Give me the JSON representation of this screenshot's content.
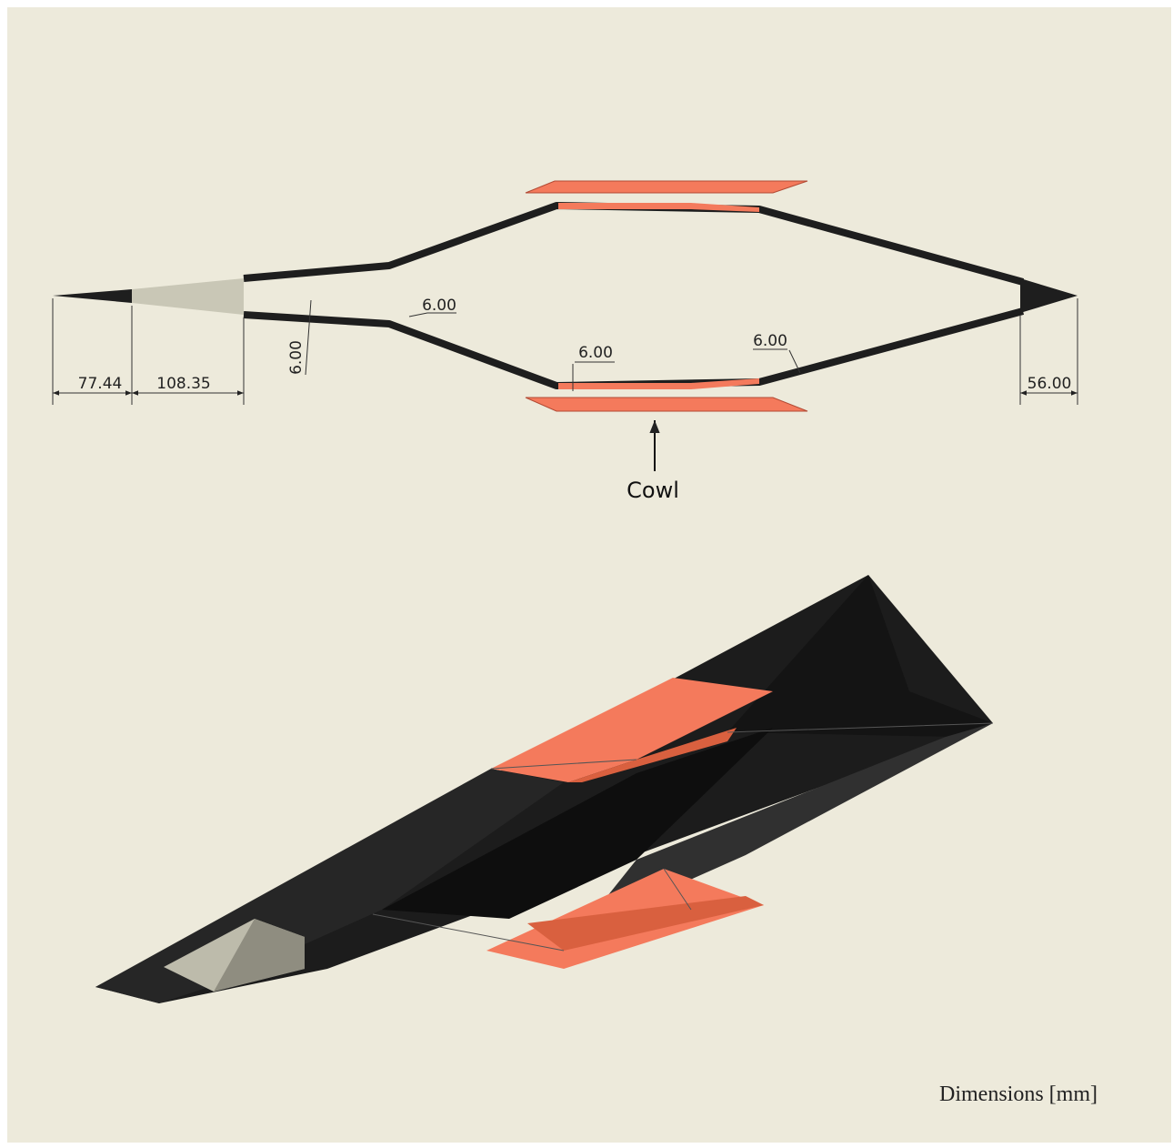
{
  "dimensions": [
    "77.44",
    "108.35",
    "56.00",
    "6.00",
    "6.00",
    "6.00",
    "6.00"
  ],
  "callout": "Cowl",
  "note": "Dimensions [mm]"
}
